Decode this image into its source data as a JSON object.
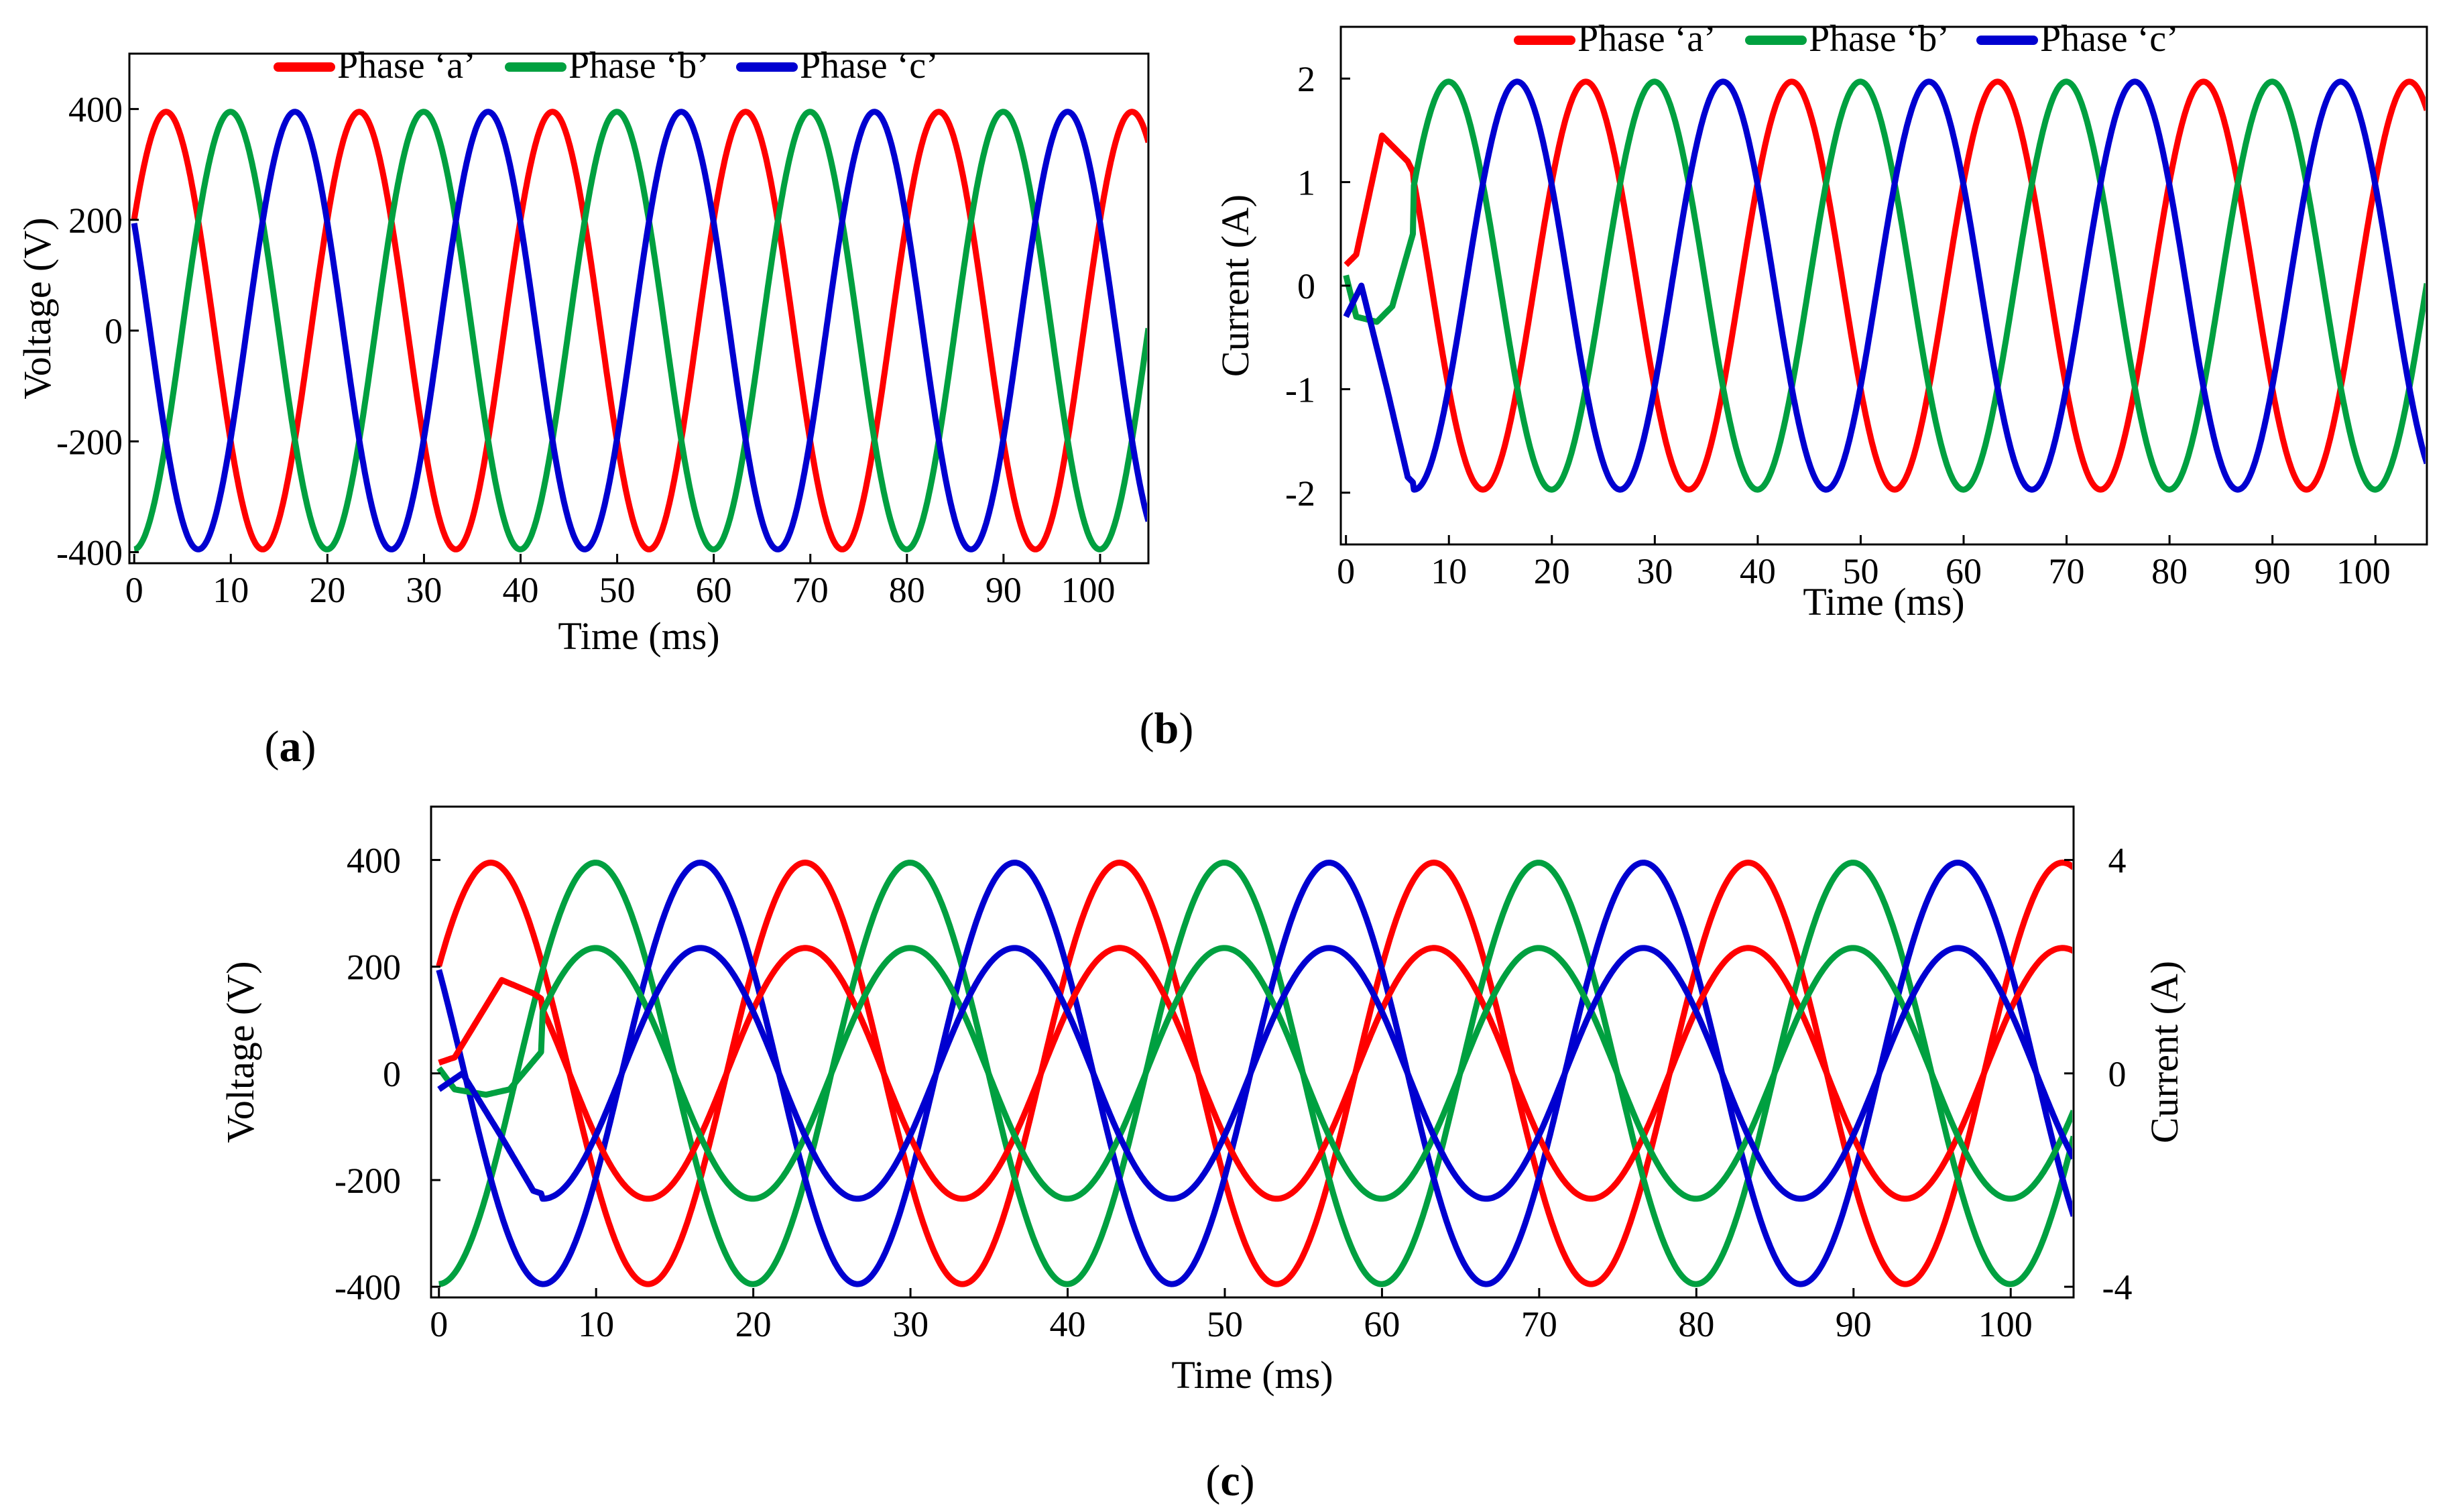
{
  "colors": {
    "phase_a": "#ff0000",
    "phase_b": "#00a040",
    "phase_c": "#0000d0"
  },
  "chart_data": [
    {
      "type": "line",
      "panel_label": "a",
      "xlabel": "Time (ms)",
      "ylabel": "Voltage (V)",
      "xlim": [
        -0.5,
        105
      ],
      "ylim": [
        -420,
        500
      ],
      "xticks": [
        "0",
        "10",
        "20",
        "30",
        "40",
        "50",
        "60",
        "70",
        "80",
        "90",
        "100"
      ],
      "yticks": [
        "400",
        "200",
        "0",
        "-200",
        "-400"
      ],
      "legend": [
        "Phase ‘a’",
        "Phase ‘b’",
        "Phase ‘c’"
      ],
      "legend_position": "top",
      "waveform": {
        "frequency_hz": 50,
        "amplitude": 395,
        "phase_a_peak_ms": 3.3
      },
      "series": [
        {
          "name": "Phase ‘a’",
          "phase_deg": 0
        },
        {
          "name": "Phase ‘b’",
          "phase_deg": -120
        },
        {
          "name": "Phase ‘c’",
          "phase_deg": 120
        }
      ]
    },
    {
      "type": "line",
      "panel_label": "b",
      "xlabel": "Time (ms)",
      "ylabel": "Current (A)",
      "xlim": [
        -0.5,
        105
      ],
      "ylim": [
        -2.5,
        2.5
      ],
      "xticks": [
        "0",
        "10",
        "20",
        "30",
        "40",
        "50",
        "60",
        "70",
        "80",
        "90",
        "100"
      ],
      "yticks": [
        "2",
        "1",
        "0",
        "-1",
        "-2"
      ],
      "legend": [
        "Phase ‘a’",
        "Phase ‘b’",
        "Phase ‘c’"
      ],
      "legend_position": "top",
      "waveform": {
        "frequency_hz": 50,
        "amplitude": 1.97,
        "phase_a_peak_ms": 3.3,
        "transient_until_ms": 6.5
      },
      "series": [
        {
          "name": "Phase ‘a’",
          "phase_deg": 0,
          "transient": [
            [
              0,
              0.2
            ],
            [
              1,
              0.3
            ],
            [
              3.5,
              1.45
            ],
            [
              6,
              1.2
            ],
            [
              6.5,
              1.1
            ]
          ]
        },
        {
          "name": "Phase ‘b’",
          "phase_deg": -120,
          "transient": [
            [
              0,
              0.1
            ],
            [
              1,
              -0.3
            ],
            [
              3,
              -0.35
            ],
            [
              4.5,
              -0.2
            ],
            [
              6.5,
              0.5
            ]
          ]
        },
        {
          "name": "Phase ‘c’",
          "phase_deg": 120,
          "transient": [
            [
              0,
              -0.3
            ],
            [
              1.5,
              0
            ],
            [
              4,
              -1.0
            ],
            [
              6,
              -1.85
            ],
            [
              6.5,
              -1.9
            ]
          ]
        }
      ]
    },
    {
      "type": "line",
      "panel_label": "c",
      "xlabel": "Time (ms)",
      "ylabel": "Voltage (V)",
      "y2label": "Current (A)",
      "xlim": [
        -0.5,
        104
      ],
      "ylim": [
        -420,
        500
      ],
      "y2lim": [
        -4.2,
        5.0
      ],
      "xticks": [
        "0",
        "10",
        "20",
        "30",
        "40",
        "50",
        "60",
        "70",
        "80",
        "90",
        "100"
      ],
      "yticks": [
        "400",
        "200",
        "0",
        "-200",
        "-400"
      ],
      "y2ticks": [
        "4",
        "0",
        "-4"
      ],
      "waveform": {
        "frequency_hz": 50,
        "voltage_amplitude": 395,
        "current_amplitude": 2.35,
        "phase_a_peak_ms": 3.3,
        "transient_until_ms": 6.5
      },
      "series": [
        {
          "name": "",
          "quantity": "voltage",
          "phase_deg": 0,
          "color": "phase_a"
        },
        {
          "name": "",
          "quantity": "voltage",
          "phase_deg": -120,
          "color": "phase_b"
        },
        {
          "name": "",
          "quantity": "voltage",
          "phase_deg": 120,
          "color": "phase_c"
        },
        {
          "name": "",
          "quantity": "current",
          "phase_deg": 0,
          "color": "phase_a",
          "transient": [
            [
              0,
              0.2
            ],
            [
              1,
              0.3
            ],
            [
              4,
              1.75
            ],
            [
              6,
              1.5
            ],
            [
              6.5,
              1.4
            ]
          ]
        },
        {
          "name": "",
          "quantity": "current",
          "phase_deg": -120,
          "color": "phase_b",
          "transient": [
            [
              0,
              0.1
            ],
            [
              1,
              -0.3
            ],
            [
              3,
              -0.4
            ],
            [
              4.5,
              -0.3
            ],
            [
              6.5,
              0.4
            ]
          ]
        },
        {
          "name": "",
          "quantity": "current",
          "phase_deg": 120,
          "color": "phase_c",
          "transient": [
            [
              0,
              -0.3
            ],
            [
              1.5,
              0
            ],
            [
              4,
              -1.2
            ],
            [
              6,
              -2.2
            ],
            [
              6.5,
              -2.25
            ]
          ]
        }
      ]
    }
  ]
}
